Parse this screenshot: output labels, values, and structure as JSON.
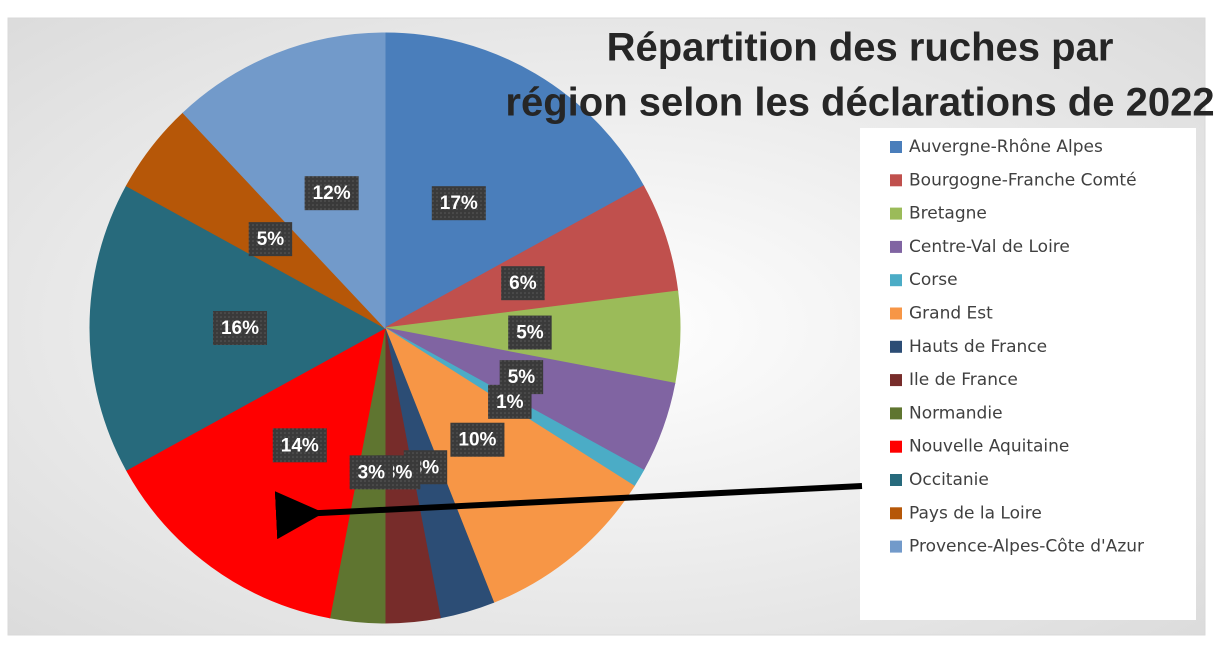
{
  "chart_data": {
    "type": "pie",
    "title": "Répartition des ruches par région selon les déclarations de 2022",
    "categories": [
      "Auvergne-Rhône Alpes",
      "Bourgogne-Franche Comté",
      "Bretagne",
      "Centre-Val de Loire",
      "Corse",
      "Grand Est",
      "Hauts de France",
      "Ile de France",
      "Normandie",
      "Nouvelle Aquitaine",
      "Occitanie",
      "Pays de la Loire",
      "Provence-Alpes-Côte d'Azur"
    ],
    "values": [
      17,
      6,
      5,
      5,
      1,
      10,
      3,
      3,
      3,
      14,
      16,
      5,
      12
    ],
    "value_labels": [
      "17%",
      "6%",
      "5%",
      "5%",
      "1%",
      "10%",
      "3%",
      "3%",
      "3%",
      "14%",
      "16%",
      "5%",
      "12%"
    ],
    "colors": [
      "#4a7ebb",
      "#c0504d",
      "#9bbb59",
      "#8064a2",
      "#4bacc6",
      "#f79646",
      "#2c4d75",
      "#772c2a",
      "#5f7530",
      "#ff0000",
      "#276a7c",
      "#b65708",
      "#729aca"
    ],
    "legend": "right"
  }
}
